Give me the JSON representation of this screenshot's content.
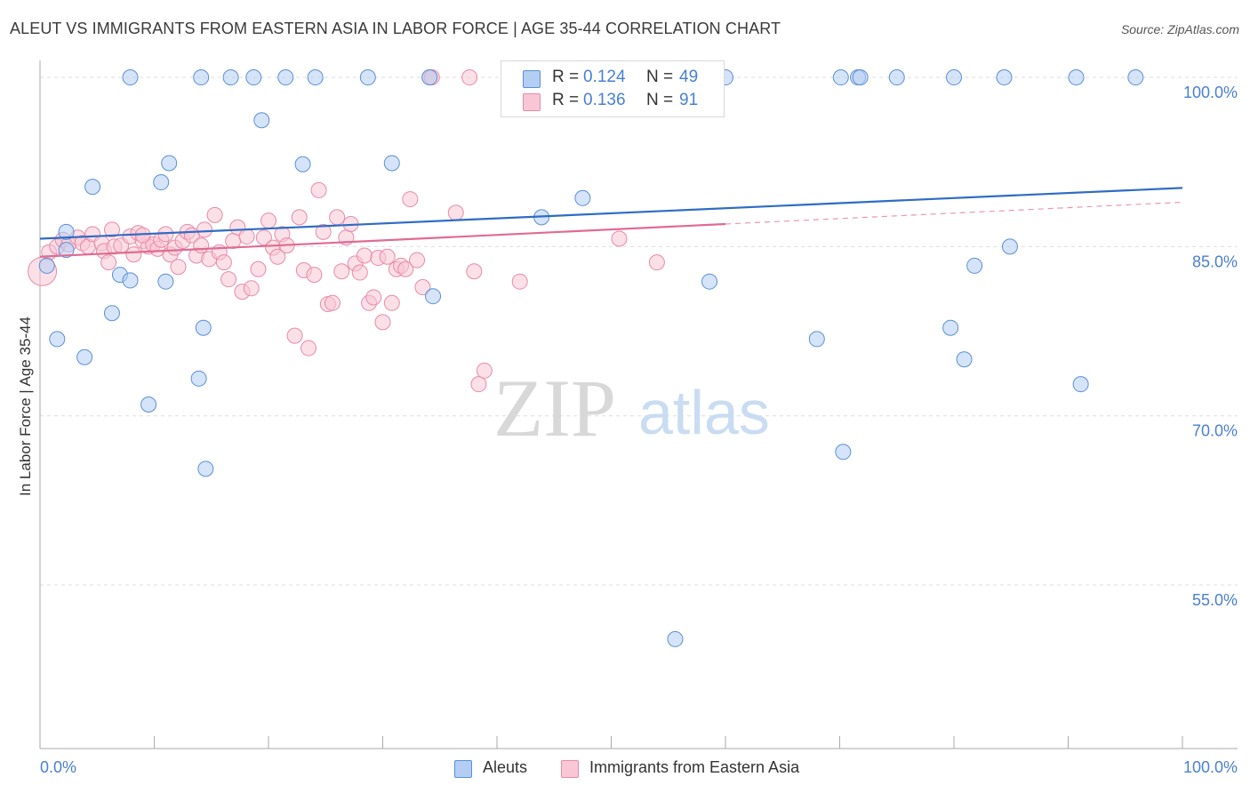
{
  "header": {
    "title": "ALEUT VS IMMIGRANTS FROM EASTERN ASIA IN LABOR FORCE | AGE 35-44 CORRELATION CHART",
    "source": "Source: ZipAtlas.com"
  },
  "legend_top": {
    "rows": [
      {
        "r_label": "R =",
        "r_value": "0.124",
        "n_label": "N =",
        "n_value": "49"
      },
      {
        "r_label": "R =",
        "r_value": "0.136",
        "n_label": "N =",
        "n_value": "91"
      }
    ]
  },
  "legend_bottom": [
    "Aleuts",
    "Immigrants from Eastern Asia"
  ],
  "watermark": {
    "zip": "ZIP",
    "atlas": "atlas"
  },
  "colors": {
    "blue_fill": "#b3cef2",
    "blue_stroke": "#5b8fd6",
    "blue_line": "#2f6cc4",
    "pink_fill": "#f8c6d5",
    "pink_stroke": "#e88aa8",
    "pink_line": "#e06b92",
    "axis_text": "#4a7fd0",
    "grid": "#dddddd"
  },
  "chart_data": {
    "type": "scatter",
    "title": "ALEUT VS IMMIGRANTS FROM EASTERN ASIA IN LABOR FORCE | AGE 35-44 CORRELATION CHART",
    "xlabel": "",
    "ylabel": "In Labor Force | Age 35-44",
    "xlim": [
      0,
      100
    ],
    "ylim": [
      40.5,
      101.5
    ],
    "x_tick_labels": [
      "0.0%",
      "100.0%"
    ],
    "y_ticks": [
      100,
      85,
      70,
      55
    ],
    "y_tick_labels": [
      "100.0%",
      "85.0%",
      "70.0%",
      "55.0%"
    ],
    "grid": true,
    "legend_position": "bottom",
    "series": [
      {
        "name": "Aleuts",
        "color": "#5b8fd6",
        "trend": {
          "x": [
            0,
            100
          ],
          "y": [
            85.7,
            90.2
          ]
        },
        "points": [
          [
            0.6,
            83.3
          ],
          [
            2.3,
            84.7
          ],
          [
            2.3,
            86.3
          ],
          [
            4.6,
            90.3
          ],
          [
            7.9,
            100.0
          ],
          [
            7.0,
            82.5
          ],
          [
            7.9,
            82.0
          ],
          [
            1.5,
            76.8
          ],
          [
            3.9,
            75.2
          ],
          [
            6.3,
            79.1
          ],
          [
            10.6,
            90.7
          ],
          [
            9.5,
            71.0
          ],
          [
            11.3,
            92.4
          ],
          [
            11.0,
            81.9
          ],
          [
            14.1,
            100.0
          ],
          [
            14.3,
            77.8
          ],
          [
            13.9,
            73.3
          ],
          [
            16.7,
            100.0
          ],
          [
            18.7,
            100.0
          ],
          [
            14.5,
            65.3
          ],
          [
            19.4,
            96.2
          ],
          [
            23.0,
            92.3
          ],
          [
            21.5,
            100.0
          ],
          [
            24.1,
            100.0
          ],
          [
            28.7,
            100.0
          ],
          [
            30.8,
            92.4
          ],
          [
            34.1,
            100.0
          ],
          [
            34.4,
            80.6
          ],
          [
            43.9,
            87.6
          ],
          [
            47.5,
            89.3
          ],
          [
            50.7,
            100.0
          ],
          [
            55.6,
            50.2
          ],
          [
            60.0,
            100.0
          ],
          [
            58.6,
            81.9
          ],
          [
            68.0,
            76.8
          ],
          [
            70.1,
            100.0
          ],
          [
            70.3,
            66.8
          ],
          [
            71.6,
            100.0
          ],
          [
            71.8,
            100.0
          ],
          [
            75.0,
            100.0
          ],
          [
            80.0,
            100.0
          ],
          [
            79.7,
            77.8
          ],
          [
            80.9,
            75.0
          ],
          [
            81.8,
            83.3
          ],
          [
            84.4,
            100.0
          ],
          [
            84.9,
            85.0
          ],
          [
            91.1,
            72.8
          ],
          [
            90.7,
            100.0
          ],
          [
            95.9,
            100.0
          ]
        ]
      },
      {
        "name": "Immigrants from Eastern Asia",
        "color": "#e88aa8",
        "trend": {
          "x": [
            0,
            60
          ],
          "y": [
            84.1,
            87.0
          ]
        },
        "points": [
          [
            0.2,
            82.8
          ],
          [
            0.8,
            84.5
          ],
          [
            1.5,
            85.0
          ],
          [
            2.0,
            85.6
          ],
          [
            2.5,
            85.2
          ],
          [
            3.3,
            85.8
          ],
          [
            3.7,
            85.3
          ],
          [
            4.2,
            85.0
          ],
          [
            4.6,
            86.1
          ],
          [
            5.4,
            85.3
          ],
          [
            5.6,
            84.6
          ],
          [
            6.0,
            83.6
          ],
          [
            6.3,
            86.5
          ],
          [
            6.5,
            85.0
          ],
          [
            7.1,
            85.1
          ],
          [
            7.9,
            85.9
          ],
          [
            8.2,
            84.3
          ],
          [
            8.6,
            86.2
          ],
          [
            9.0,
            85.5
          ],
          [
            9.5,
            85.0
          ],
          [
            9.9,
            85.2
          ],
          [
            10.3,
            84.8
          ],
          [
            10.6,
            85.6
          ],
          [
            11.0,
            86.1
          ],
          [
            11.4,
            84.3
          ],
          [
            11.8,
            84.9
          ],
          [
            12.1,
            83.2
          ],
          [
            12.5,
            85.5
          ],
          [
            12.9,
            86.3
          ],
          [
            13.3,
            86.0
          ],
          [
            13.7,
            84.2
          ],
          [
            14.1,
            85.1
          ],
          [
            14.4,
            86.5
          ],
          [
            14.8,
            83.9
          ],
          [
            15.3,
            87.8
          ],
          [
            15.7,
            84.5
          ],
          [
            16.1,
            83.6
          ],
          [
            16.5,
            82.1
          ],
          [
            16.9,
            85.5
          ],
          [
            17.3,
            86.7
          ],
          [
            17.7,
            81.0
          ],
          [
            18.1,
            85.9
          ],
          [
            18.5,
            81.3
          ],
          [
            19.1,
            83.0
          ],
          [
            19.6,
            85.8
          ],
          [
            20.0,
            87.3
          ],
          [
            20.4,
            84.9
          ],
          [
            20.8,
            84.1
          ],
          [
            21.2,
            86.1
          ],
          [
            21.6,
            85.1
          ],
          [
            22.3,
            77.1
          ],
          [
            22.7,
            87.6
          ],
          [
            23.1,
            82.9
          ],
          [
            23.5,
            76.0
          ],
          [
            24.0,
            82.5
          ],
          [
            24.4,
            90.0
          ],
          [
            24.8,
            86.3
          ],
          [
            25.2,
            79.9
          ],
          [
            25.6,
            80.0
          ],
          [
            26.0,
            87.6
          ],
          [
            26.4,
            82.8
          ],
          [
            26.8,
            85.8
          ],
          [
            27.2,
            87.0
          ],
          [
            27.6,
            83.5
          ],
          [
            28.0,
            82.7
          ],
          [
            28.4,
            84.2
          ],
          [
            28.8,
            80.0
          ],
          [
            29.2,
            80.5
          ],
          [
            29.6,
            84.0
          ],
          [
            30.0,
            78.3
          ],
          [
            30.4,
            84.1
          ],
          [
            30.8,
            80.0
          ],
          [
            31.2,
            83.0
          ],
          [
            31.6,
            83.3
          ],
          [
            32.0,
            83.0
          ],
          [
            32.4,
            89.2
          ],
          [
            33.0,
            83.8
          ],
          [
            33.5,
            81.4
          ],
          [
            34.1,
            100.0
          ],
          [
            36.4,
            88.0
          ],
          [
            37.6,
            100.0
          ],
          [
            38.0,
            82.8
          ],
          [
            38.4,
            72.8
          ],
          [
            38.9,
            74.0
          ],
          [
            42.0,
            81.9
          ],
          [
            43.2,
            100.0
          ],
          [
            50.7,
            85.7
          ],
          [
            54.0,
            83.6
          ],
          [
            53.4,
            100.0
          ],
          [
            34.3,
            100.0
          ],
          [
            9.0,
            86.0
          ]
        ]
      }
    ]
  }
}
